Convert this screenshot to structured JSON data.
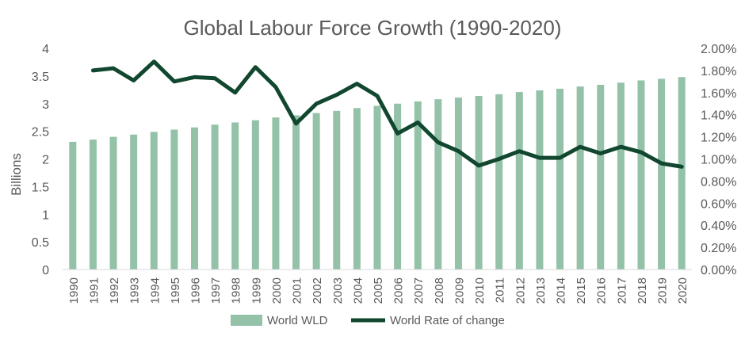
{
  "chart_data": {
    "type": "bar",
    "title": "Global Labour Force Growth (1990-2020)",
    "ylabel": "Billions",
    "ylim": [
      0,
      4
    ],
    "yticks": [
      "0",
      "0.5",
      "1",
      "1.5",
      "2",
      "2.5",
      "3",
      "3.5",
      "4"
    ],
    "y2lim": [
      0,
      0.02
    ],
    "y2ticks": [
      "0.00%",
      "0.20%",
      "0.40%",
      "0.60%",
      "0.80%",
      "1.00%",
      "1.20%",
      "1.40%",
      "1.60%",
      "1.80%",
      "2.00%"
    ],
    "categories": [
      "1990",
      "1991",
      "1992",
      "1993",
      "1994",
      "1995",
      "1996",
      "1997",
      "1998",
      "1999",
      "2000",
      "2001",
      "2002",
      "2003",
      "2004",
      "2005",
      "2006",
      "2007",
      "2008",
      "2009",
      "2010",
      "2011",
      "2012",
      "2013",
      "2014",
      "2015",
      "2016",
      "2017",
      "2018",
      "2019",
      "2020"
    ],
    "series": [
      {
        "name": "World WLD",
        "type": "bar",
        "axis": "left",
        "color": "#93c2a8",
        "values": [
          2.31,
          2.35,
          2.4,
          2.44,
          2.49,
          2.53,
          2.57,
          2.62,
          2.66,
          2.7,
          2.75,
          2.79,
          2.83,
          2.87,
          2.92,
          2.96,
          3.0,
          3.04,
          3.08,
          3.11,
          3.14,
          3.17,
          3.21,
          3.24,
          3.27,
          3.31,
          3.34,
          3.38,
          3.42,
          3.45,
          3.48
        ]
      },
      {
        "name": "World Rate of change",
        "type": "line",
        "axis": "right",
        "color": "#11472f",
        "values": [
          null,
          0.018,
          0.0182,
          0.0171,
          0.0188,
          0.017,
          0.0174,
          0.0173,
          0.016,
          0.0183,
          0.0165,
          0.0132,
          0.015,
          0.0158,
          0.0168,
          0.0157,
          0.0123,
          0.0133,
          0.0115,
          0.0107,
          0.0094,
          0.01,
          0.0107,
          0.0101,
          0.0101,
          0.0111,
          0.0105,
          0.0111,
          0.0106,
          0.0096,
          0.0093
        ]
      }
    ],
    "grid": false,
    "legend": "bottom"
  }
}
